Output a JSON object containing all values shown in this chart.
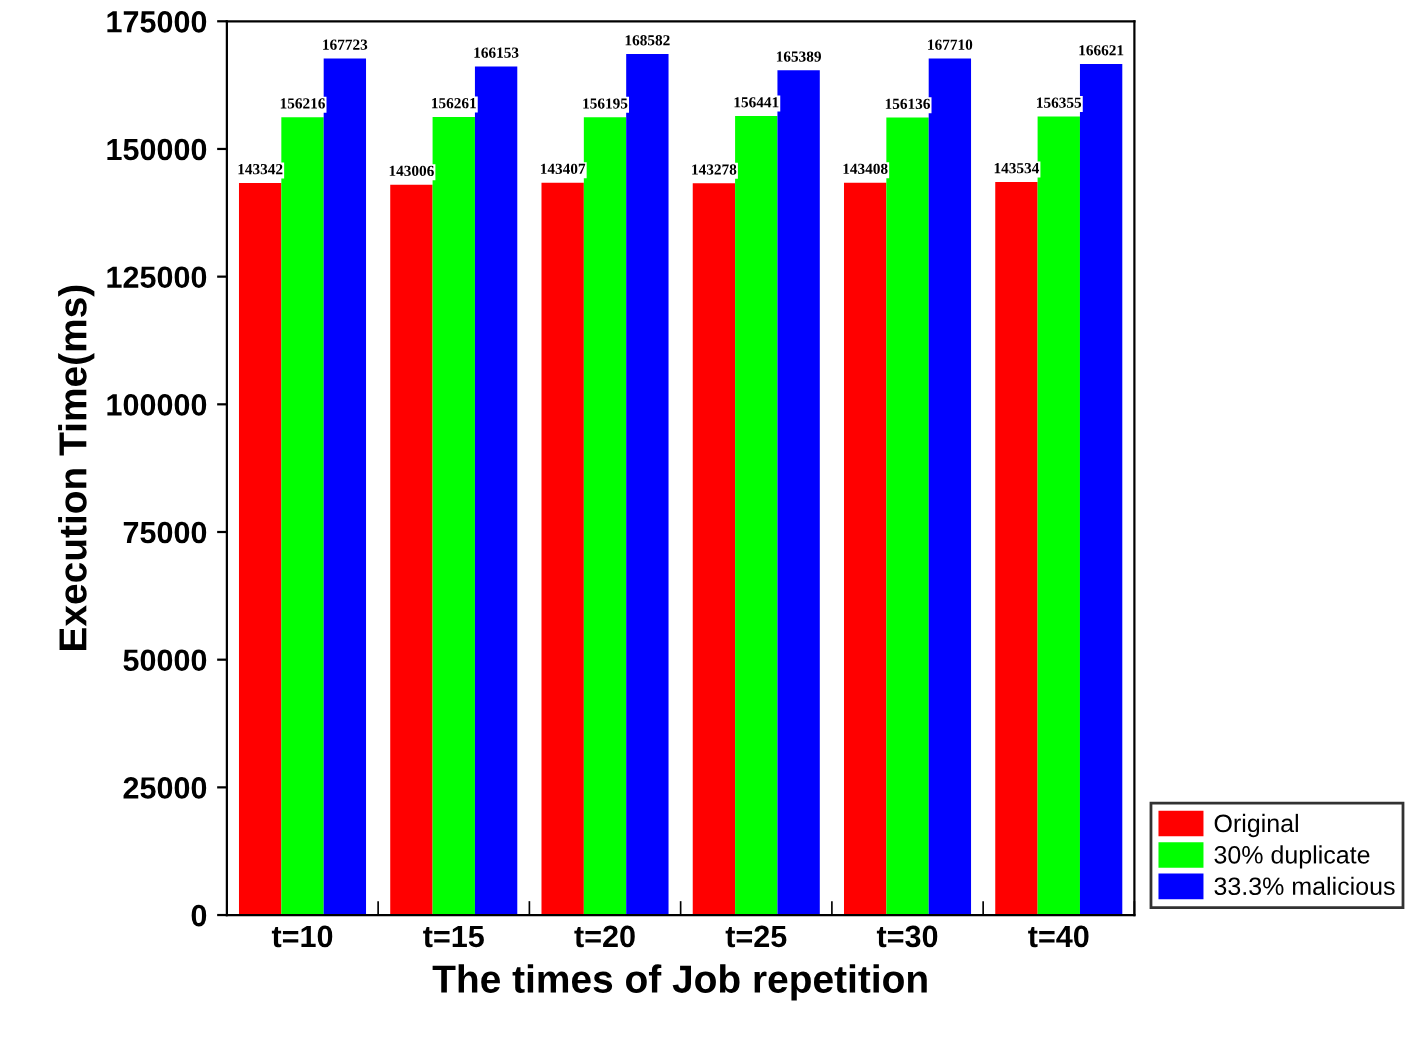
{
  "chart_data": {
    "type": "bar",
    "xlabel": "The times of Job repetition",
    "ylabel": "Execution Time(ms)",
    "categories": [
      "t=10",
      "t=15",
      "t=20",
      "t=25",
      "t=30",
      "t=40"
    ],
    "series": [
      {
        "name": "Original",
        "color": "#ff0000",
        "values": [
          143342,
          143006,
          143407,
          143278,
          143408,
          143534
        ]
      },
      {
        "name": "30% duplicate",
        "color": "#00ff00",
        "values": [
          156216,
          156261,
          156195,
          156441,
          156136,
          156355
        ]
      },
      {
        "name": "33.3% malicious",
        "color": "#0000ff",
        "values": [
          167723,
          166153,
          168582,
          165389,
          167710,
          166621
        ]
      }
    ],
    "ylim": [
      0,
      175000
    ],
    "yticks": [
      0,
      25000,
      50000,
      75000,
      100000,
      125000,
      150000,
      175000
    ],
    "data_labels": true,
    "legend": "bottom right",
    "grid": false
  }
}
